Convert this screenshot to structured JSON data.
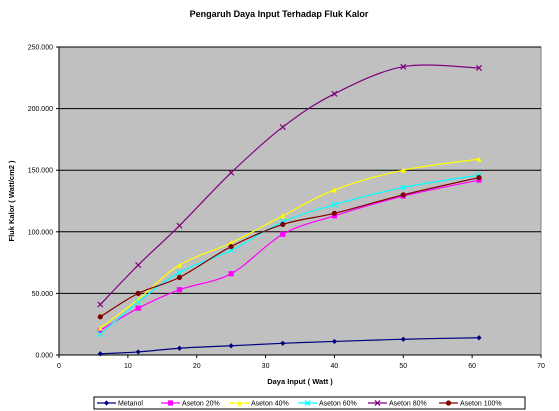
{
  "chart_data": {
    "type": "line",
    "title": "Pengaruh Daya Input Terhadap Fluk Kalor",
    "xlabel": "Daya Input ( Watt )",
    "ylabel": "Fluk Kalor ( Watt/cm2 )",
    "xlim": [
      0,
      70
    ],
    "ylim": [
      0,
      250000
    ],
    "xticks": [
      0,
      10,
      20,
      30,
      40,
      50,
      60,
      70
    ],
    "xtick_labels": [
      "0",
      "10",
      "20",
      "30",
      "40",
      "50",
      "60",
      "70"
    ],
    "yticks": [
      0,
      50000,
      100000,
      150000,
      200000,
      250000
    ],
    "ytick_labels": [
      "0.000",
      "50.000",
      "100.000",
      "150.000",
      "200.000",
      "250.000"
    ],
    "grid": "horizontal",
    "plot_background": "#c0c0c0",
    "legend_position": "bottom",
    "series": [
      {
        "name": "Metanol",
        "color": "#000080",
        "marker": "diamond",
        "x": [
          6,
          11.5,
          17.5,
          25,
          32.5,
          40,
          50,
          61
        ],
        "y": [
          1000,
          2500,
          5500,
          7500,
          9500,
          11000,
          12800,
          14000
        ]
      },
      {
        "name": "Aseton 20%",
        "color": "#ff00ff",
        "marker": "square",
        "x": [
          6,
          11.5,
          17.5,
          25,
          32.5,
          40,
          50,
          61
        ],
        "y": [
          20000,
          38000,
          53000,
          66000,
          98000,
          113000,
          129000,
          142000
        ]
      },
      {
        "name": "Aseton 40%",
        "color": "#ffff00",
        "marker": "triangle",
        "x": [
          6,
          11.5,
          17.5,
          25,
          32.5,
          40,
          50,
          61
        ],
        "y": [
          22000,
          45000,
          73000,
          91000,
          113000,
          134000,
          150000,
          159000
        ]
      },
      {
        "name": "Aseton 60%",
        "color": "#00ffff",
        "marker": "x",
        "x": [
          6,
          11.5,
          17.5,
          25,
          32.5,
          40,
          50,
          61
        ],
        "y": [
          17000,
          43000,
          67000,
          85000,
          108000,
          122000,
          136000,
          146000
        ]
      },
      {
        "name": "Aseton 80%",
        "color": "#800080",
        "marker": "x",
        "x": [
          6,
          11.5,
          17.5,
          25,
          32.5,
          40,
          50,
          61
        ],
        "y": [
          41000,
          73000,
          105000,
          148000,
          185000,
          212000,
          234000,
          233000
        ]
      },
      {
        "name": "Aseton 100%",
        "color": "#800000",
        "marker": "circle",
        "x": [
          6,
          11.5,
          17.5,
          25,
          32.5,
          40,
          50,
          61
        ],
        "y": [
          31000,
          50000,
          63000,
          88000,
          106000,
          115000,
          130000,
          144000
        ]
      }
    ]
  }
}
